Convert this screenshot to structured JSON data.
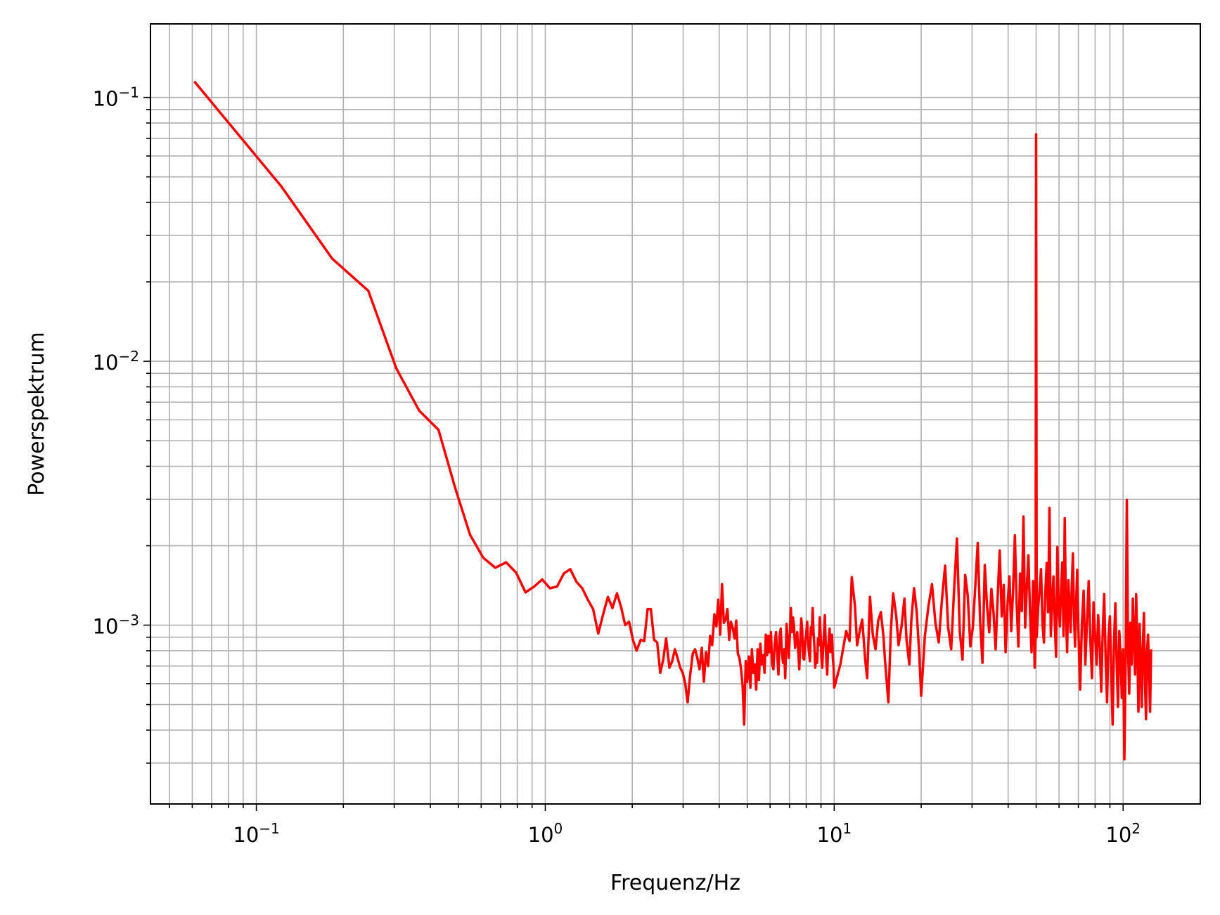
{
  "chart_data": {
    "type": "line",
    "title": "",
    "xlabel": "Frequenz/Hz",
    "ylabel": "Powerspektrum",
    "x_scale": "log",
    "y_scale": "log",
    "xlim": [
      0.043,
      185
    ],
    "ylim": [
      0.00021,
      0.19
    ],
    "grid": "major and minor",
    "line_color": "#ff0000",
    "grid_color": "#b0b0b0",
    "x_ticks": [
      {
        "value": 0.1,
        "base": "10",
        "exp": "−1"
      },
      {
        "value": 1,
        "base": "10",
        "exp": "0"
      },
      {
        "value": 10,
        "base": "10",
        "exp": "1"
      },
      {
        "value": 100,
        "base": "10",
        "exp": "2"
      }
    ],
    "y_ticks": [
      {
        "value": 0.1,
        "base": "10",
        "exp": "−1"
      },
      {
        "value": 0.01,
        "base": "10",
        "exp": "−2"
      },
      {
        "value": 0.001,
        "base": "10",
        "exp": "−3"
      }
    ],
    "series": [
      {
        "x": [
          0.061,
          0.122,
          0.183,
          0.244,
          0.305,
          0.366,
          0.427,
          0.488,
          0.549,
          0.61,
          0.671,
          0.732,
          0.793,
          0.854,
          0.915,
          0.976,
          1.037,
          1.098,
          1.159,
          1.22,
          1.281,
          1.342,
          1.403,
          1.464,
          1.525,
          1.586,
          1.647,
          1.708,
          1.77,
          1.83,
          1.89,
          1.95,
          2.01,
          2.07,
          2.14,
          2.2,
          2.26,
          2.32,
          2.38,
          2.44,
          2.5,
          2.56,
          2.62,
          2.69,
          2.75,
          2.81,
          2.87,
          2.93,
          2.99,
          3.05,
          3.11,
          3.17,
          3.24,
          3.3,
          3.36,
          3.42,
          3.48,
          3.54,
          3.6,
          3.66,
          3.72,
          3.78,
          3.85,
          3.91,
          3.97,
          4.03,
          4.09,
          4.15,
          4.21,
          4.27,
          4.33,
          4.39,
          4.46,
          4.52,
          4.58,
          4.64,
          4.7,
          4.76,
          4.82,
          4.88,
          4.94,
          5.0,
          5.07,
          5.13,
          5.19,
          5.25,
          5.31,
          5.37,
          5.43,
          5.49,
          5.55,
          5.61,
          5.68,
          5.74,
          5.8,
          5.86,
          5.92,
          5.98,
          6.04,
          6.1,
          6.16,
          6.22,
          6.29,
          6.35,
          6.41,
          6.47,
          6.53,
          6.59,
          6.65,
          6.71,
          6.77,
          6.84,
          6.9,
          6.96,
          7.02,
          7.08,
          7.14,
          7.2,
          7.26,
          7.32,
          7.38,
          7.45,
          7.51,
          7.57,
          7.63,
          7.69,
          7.75,
          7.81,
          7.87,
          7.93,
          7.99,
          8.06,
          8.12,
          8.18,
          8.24,
          8.3,
          8.36,
          8.42,
          8.48,
          8.54,
          8.6,
          8.67,
          8.73,
          8.79,
          8.85,
          8.91,
          8.97,
          9.03,
          9.09,
          9.15,
          9.21,
          9.28,
          9.34,
          9.4,
          9.46,
          9.52,
          9.58,
          9.64,
          9.7,
          9.76,
          9.82,
          9.89,
          9.95,
          10.0,
          10.5,
          11.0,
          11.3,
          11.5,
          11.8,
          12.0,
          12.3,
          12.5,
          12.8,
          13.0,
          13.3,
          13.6,
          13.9,
          14.2,
          14.5,
          14.8,
          15.0,
          15.4,
          15.7,
          16.0,
          16.4,
          16.7,
          17.1,
          17.5,
          17.8,
          18.2,
          18.5,
          18.9,
          19.3,
          19.7,
          20.0,
          20.6,
          21.2,
          21.8,
          22.4,
          23.0,
          23.6,
          24.2,
          24.8,
          25.4,
          26.0,
          26.6,
          27.2,
          27.8,
          28.4,
          29.0,
          29.6,
          30.2,
          30.8,
          31.4,
          32.0,
          32.6,
          33.2,
          33.8,
          34.4,
          35.0,
          35.6,
          36.2,
          36.8,
          37.4,
          38.0,
          38.6,
          39.2,
          39.8,
          40.4,
          41.0,
          41.6,
          42.2,
          42.8,
          43.4,
          44.0,
          44.6,
          45.2,
          45.8,
          46.4,
          47.0,
          47.6,
          48.2,
          48.8,
          49.4,
          49.8,
          50.0,
          50.2,
          50.8,
          51.4,
          52.0,
          52.6,
          53.2,
          53.8,
          54.4,
          55.0,
          55.6,
          56.2,
          56.8,
          57.4,
          58.0,
          58.6,
          59.2,
          59.8,
          60.4,
          61.0,
          61.6,
          62.2,
          62.8,
          63.4,
          64.0,
          64.6,
          65.2,
          65.8,
          66.4,
          67.0,
          67.6,
          68.2,
          68.8,
          69.4,
          70.0,
          71.0,
          72.0,
          73.0,
          74.0,
          75.0,
          76.0,
          77.0,
          78.0,
          79.0,
          80.0,
          81.0,
          82.0,
          83.0,
          84.0,
          85.0,
          86.0,
          87.0,
          88.0,
          89.0,
          90.0,
          91.0,
          92.0,
          93.0,
          94.0,
          95.0,
          96.0,
          97.0,
          98.0,
          99.0,
          100.0,
          101.0,
          102.0,
          103.0,
          104.0,
          105.0,
          106.0,
          107.0,
          108.0,
          109.0,
          110.0,
          111.0,
          112.0,
          113.0,
          114.0,
          115.0,
          116.0,
          117.0,
          118.0,
          119.0,
          120.0,
          121.0,
          122.0,
          123.0,
          124.0,
          125.0
        ],
        "y": [
          0.115,
          0.046,
          0.0245,
          0.0185,
          0.0094,
          0.0065,
          0.0055,
          0.0033,
          0.0022,
          0.0018,
          0.00165,
          0.00173,
          0.00158,
          0.00133,
          0.0014,
          0.00149,
          0.00138,
          0.0014,
          0.00157,
          0.00163,
          0.00146,
          0.00138,
          0.00125,
          0.00115,
          0.00093,
          0.0011,
          0.00128,
          0.00116,
          0.00132,
          0.00117,
          0.001,
          0.00103,
          0.00088,
          0.0008,
          0.00088,
          0.00087,
          0.00115,
          0.00115,
          0.00088,
          0.00086,
          0.00066,
          0.00074,
          0.00089,
          0.00069,
          0.00073,
          0.00081,
          0.00075,
          0.00069,
          0.00066,
          0.0006,
          0.00051,
          0.00064,
          0.00078,
          0.00081,
          0.00075,
          0.00068,
          0.00082,
          0.00061,
          0.00079,
          0.0007,
          0.00091,
          0.00084,
          0.0011,
          0.00099,
          0.00125,
          0.00092,
          0.00143,
          0.00102,
          0.00105,
          0.00115,
          0.00088,
          0.00103,
          0.00097,
          0.00089,
          0.00104,
          0.00078,
          0.00075,
          0.00068,
          0.00059,
          0.00042,
          0.00073,
          0.00061,
          0.00076,
          0.00058,
          0.00081,
          0.00066,
          0.00071,
          0.00057,
          0.00081,
          0.00062,
          0.00085,
          0.00071,
          0.00077,
          0.00066,
          0.00092,
          0.00077,
          0.00091,
          0.00079,
          0.00094,
          0.00071,
          0.00068,
          0.00084,
          0.00094,
          0.00078,
          0.00065,
          0.00091,
          0.00097,
          0.00079,
          0.00072,
          0.00081,
          0.00063,
          0.00101,
          0.00088,
          0.00075,
          0.00091,
          0.00116,
          0.00094,
          0.00107,
          0.00099,
          0.00082,
          0.00088,
          0.00094,
          0.00079,
          0.00068,
          0.00087,
          0.00106,
          0.00095,
          0.00075,
          0.00074,
          0.00087,
          0.00091,
          0.00103,
          0.00085,
          0.00079,
          0.00073,
          0.00098,
          0.00092,
          0.00116,
          0.00094,
          0.00083,
          0.00069,
          0.00078,
          0.00072,
          0.00089,
          0.00084,
          0.00107,
          0.00093,
          0.00076,
          0.00069,
          0.00081,
          0.00091,
          0.00109,
          0.00086,
          0.00073,
          0.00065,
          0.00082,
          0.00088,
          0.00097,
          0.00079,
          0.00085,
          0.00092,
          0.00075,
          0.00069,
          0.00058,
          0.00071,
          0.00095,
          0.00087,
          0.00152,
          0.00118,
          0.00084,
          0.00097,
          0.00105,
          0.00074,
          0.00063,
          0.00128,
          0.00092,
          0.00081,
          0.00104,
          0.00112,
          0.00091,
          0.00073,
          0.00051,
          0.00094,
          0.00132,
          0.00108,
          0.00084,
          0.00099,
          0.00126,
          0.00088,
          0.00071,
          0.00105,
          0.00138,
          0.00112,
          0.00078,
          0.00054,
          0.00091,
          0.00118,
          0.00143,
          0.00102,
          0.00086,
          0.00125,
          0.00168,
          0.00098,
          0.00081,
          0.00137,
          0.00213,
          0.00095,
          0.00074,
          0.00155,
          0.00129,
          0.00083,
          0.00099,
          0.00142,
          0.00205,
          0.00103,
          0.00072,
          0.00169,
          0.00118,
          0.00094,
          0.00137,
          0.00112,
          0.00081,
          0.00127,
          0.00192,
          0.00108,
          0.00142,
          0.00079,
          0.00119,
          0.00153,
          0.00095,
          0.00135,
          0.00219,
          0.00121,
          0.00083,
          0.00157,
          0.00113,
          0.00258,
          0.00098,
          0.00138,
          0.00184,
          0.00112,
          0.00079,
          0.00147,
          0.00069,
          0.0009,
          0.0725,
          0.0009,
          0.00116,
          0.00138,
          0.00163,
          0.00101,
          0.00086,
          0.00134,
          0.00172,
          0.00112,
          0.00278,
          0.00091,
          0.00123,
          0.00153,
          0.00102,
          0.00076,
          0.00198,
          0.00115,
          0.00099,
          0.00137,
          0.00173,
          0.00091,
          0.00254,
          0.00113,
          0.00079,
          0.00148,
          0.00119,
          0.00094,
          0.00139,
          0.00187,
          0.00108,
          0.00083,
          0.00124,
          0.00162,
          0.00097,
          0.00057,
          0.00101,
          0.00135,
          0.00071,
          0.00104,
          0.00147,
          0.00088,
          0.00063,
          0.00122,
          0.00091,
          0.00071,
          0.00109,
          0.00083,
          0.00056,
          0.00094,
          0.00131,
          0.00074,
          0.00051,
          0.00089,
          0.00108,
          0.00067,
          0.00042,
          0.00087,
          0.00121,
          0.00072,
          0.00049,
          0.00095,
          0.00076,
          0.00053,
          0.00081,
          0.00031,
          0.00072,
          0.00298,
          0.00082,
          0.00055,
          0.00102,
          0.00071,
          0.00126,
          0.00089,
          0.00065,
          0.00131,
          0.00082,
          0.00047,
          0.00101,
          0.00073,
          0.00049,
          0.00082,
          0.00111,
          0.00061,
          0.00044,
          0.00079,
          0.00092,
          0.00063,
          0.00047,
          0.00081
        ],
        "color": "#ff0000"
      }
    ]
  }
}
